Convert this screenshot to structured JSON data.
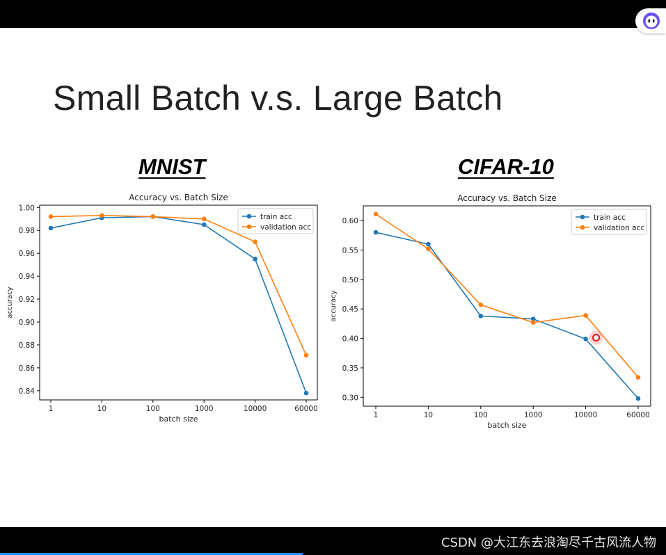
{
  "slide": {
    "title": "Small Batch v.s. Large Batch",
    "watermark": "CSDN @大江东去浪淘尽千古风流人物"
  },
  "datasets": [
    "MNIST",
    "CIFAR-10"
  ],
  "colors": {
    "train": "#1f77b4",
    "validation": "#ff7f0e",
    "accent": "#2d8cf0"
  },
  "chart_data": [
    {
      "type": "line",
      "dataset": "MNIST",
      "title": "Accuracy vs. Batch Size",
      "xlabel": "batch size",
      "ylabel": "accuracy",
      "categories": [
        "1",
        "10",
        "100",
        "1000",
        "10000",
        "60000"
      ],
      "yticks": [
        "0.84",
        "0.86",
        "0.88",
        "0.90",
        "0.92",
        "0.94",
        "0.96",
        "0.98",
        "1.00"
      ],
      "ylim": [
        0.832,
        1.002
      ],
      "series": [
        {
          "name": "train acc",
          "values": [
            0.982,
            0.991,
            0.992,
            0.985,
            0.955,
            0.838
          ]
        },
        {
          "name": "validation acc",
          "values": [
            0.992,
            0.993,
            0.992,
            0.99,
            0.97,
            0.871
          ]
        }
      ],
      "legend": "top-right"
    },
    {
      "type": "line",
      "dataset": "CIFAR-10",
      "title": "Accuracy vs. Batch Size",
      "xlabel": "batch size",
      "ylabel": "accuracy",
      "categories": [
        "1",
        "10",
        "100",
        "1000",
        "10000",
        "60000"
      ],
      "yticks": [
        "0.30",
        "0.35",
        "0.40",
        "0.45",
        "0.50",
        "0.55",
        "0.60"
      ],
      "ylim": [
        0.285,
        0.625
      ],
      "series": [
        {
          "name": "train acc",
          "values": [
            0.58,
            0.56,
            0.438,
            0.433,
            0.399,
            0.298
          ]
        },
        {
          "name": "validation acc",
          "values": [
            0.611,
            0.552,
            0.457,
            0.427,
            0.439,
            0.334
          ]
        }
      ],
      "legend": "top-right"
    }
  ]
}
